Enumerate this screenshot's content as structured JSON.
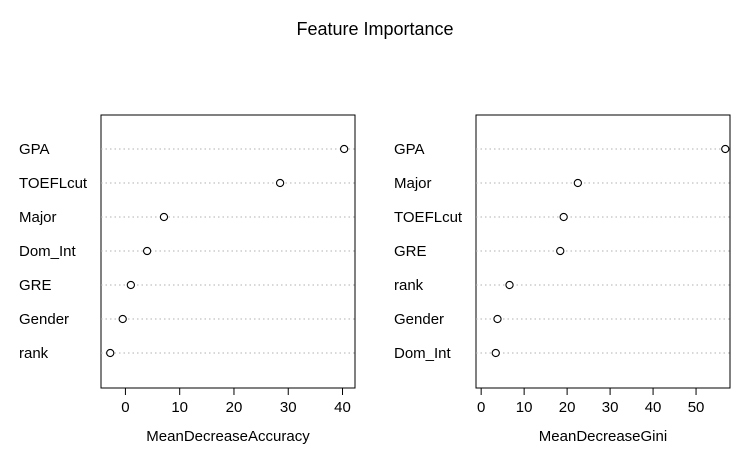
{
  "chart_data": {
    "title": "Feature Importance",
    "panels": [
      {
        "type": "scatter",
        "xlabel": "MeanDecreaseAccuracy",
        "categories": [
          "GPA",
          "TOEFLcut",
          "Major",
          "Dom_Int",
          "GRE",
          "Gender",
          "rank"
        ],
        "values": [
          40.3,
          28.5,
          7.1,
          4.0,
          1.0,
          -0.5,
          -2.8
        ],
        "xlim": [
          -4.5,
          42.3
        ],
        "xticks": [
          0,
          10,
          20,
          30,
          40
        ],
        "grid": "dotted-horizontal"
      },
      {
        "type": "scatter",
        "xlabel": "MeanDecreaseGini",
        "categories": [
          "GPA",
          "Major",
          "TOEFLcut",
          "GRE",
          "rank",
          "Gender",
          "Dom_Int"
        ],
        "values": [
          56.8,
          22.5,
          19.2,
          18.4,
          6.6,
          3.8,
          3.4
        ],
        "xlim": [
          -1.2,
          57.9
        ],
        "xticks": [
          0,
          10,
          20,
          30,
          40,
          50
        ],
        "grid": "dotted-horizontal"
      }
    ]
  }
}
